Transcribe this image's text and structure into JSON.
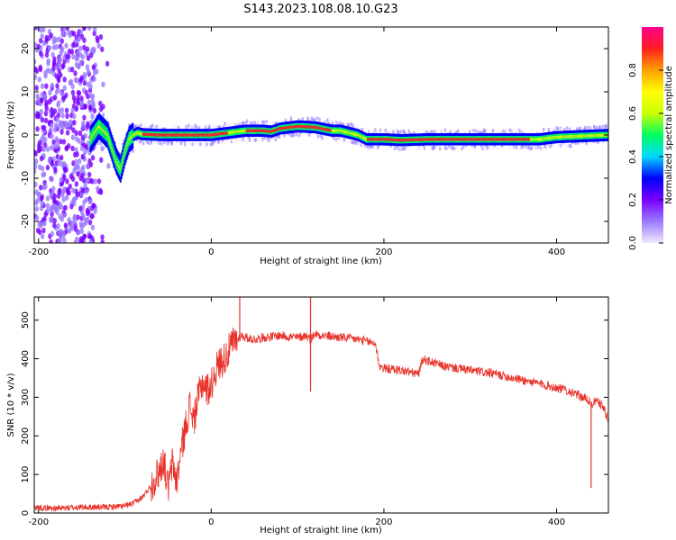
{
  "title": "S143.2023.108.08.10.G23",
  "chart_data": [
    {
      "type": "heatmap",
      "xlabel": "Height of straight line (km)",
      "ylabel": "Frequency (Hz)",
      "xlim": [
        -205,
        460
      ],
      "ylim": [
        -25,
        25
      ],
      "xticks": [
        -200,
        0,
        200,
        400
      ],
      "yticks": [
        -20,
        -10,
        0,
        10,
        20
      ],
      "colorbar": {
        "label": "Normalized spectral amplitude",
        "range": [
          0,
          1
        ],
        "ticks": [
          "0.0",
          "0.2",
          "0.4",
          "0.6",
          "0.8"
        ],
        "tick_values": [
          0,
          0.2,
          0.4,
          0.6,
          0.8
        ],
        "colormap": [
          "#f0e8ff",
          "#9a7aff",
          "#7a00ff",
          "#0000ff",
          "#00d8ff",
          "#00ff60",
          "#c8ff00",
          "#ffff00",
          "#ffa000",
          "#ff2020",
          "#ff0090"
        ]
      },
      "ridge": {
        "x": [
          -140,
          -130,
          -120,
          -115,
          -110,
          -105,
          -100,
          -95,
          -90,
          -85,
          -80,
          -60,
          -40,
          -20,
          -5,
          0,
          20,
          40,
          60,
          70,
          80,
          100,
          120,
          140,
          150,
          160,
          170,
          180,
          200,
          220,
          250,
          300,
          350,
          380,
          400,
          460
        ],
        "y": [
          -1,
          2,
          0,
          -3,
          -6,
          -8,
          -4,
          -1,
          0,
          0.5,
          0.2,
          0,
          0,
          0,
          0,
          0,
          0.5,
          1,
          1,
          0.8,
          1.5,
          2,
          1.8,
          1,
          1,
          0.5,
          0,
          -1,
          -1,
          -1.2,
          -1,
          -1,
          -1,
          -1,
          -0.5,
          0
        ]
      }
    },
    {
      "type": "line",
      "xlabel": "Height of straight line (km)",
      "ylabel": "SNR (10 * v/v)",
      "xlim": [
        -205,
        460
      ],
      "ylim": [
        0,
        560
      ],
      "xticks": [
        -200,
        0,
        200,
        400
      ],
      "yticks": [
        0,
        100,
        200,
        300,
        400,
        500
      ],
      "series": [
        {
          "color": "#e8332b",
          "x": [
            -205,
            -180,
            -150,
            -120,
            -100,
            -90,
            -80,
            -70,
            -60,
            -55,
            -50,
            -45,
            -40,
            -35,
            -30,
            -25,
            -20,
            -15,
            -10,
            -5,
            0,
            5,
            10,
            15,
            20,
            25,
            30,
            35,
            40,
            50,
            60,
            80,
            100,
            110,
            115,
            120,
            130,
            150,
            170,
            190,
            195,
            200,
            220,
            240,
            245,
            250,
            270,
            300,
            330,
            360,
            390,
            410,
            420,
            430,
            435,
            438,
            440,
            445,
            450,
            455,
            460
          ],
          "y": [
            15,
            12,
            15,
            15,
            18,
            25,
            40,
            70,
            110,
            140,
            60,
            130,
            80,
            160,
            220,
            280,
            240,
            300,
            340,
            320,
            330,
            370,
            390,
            400,
            420,
            440,
            450,
            460,
            455,
            450,
            455,
            460,
            455,
            460,
            450,
            465,
            460,
            455,
            450,
            440,
            380,
            375,
            370,
            360,
            400,
            395,
            380,
            370,
            360,
            345,
            330,
            320,
            310,
            300,
            295,
            290,
            280,
            290,
            285,
            270,
            240
          ]
        }
      ],
      "spikes": [
        {
          "x": 33,
          "y": 560
        },
        {
          "x": 115,
          "y": 560
        },
        {
          "x": 115,
          "y": 315
        },
        {
          "x": 440,
          "y": 65
        }
      ]
    }
  ]
}
